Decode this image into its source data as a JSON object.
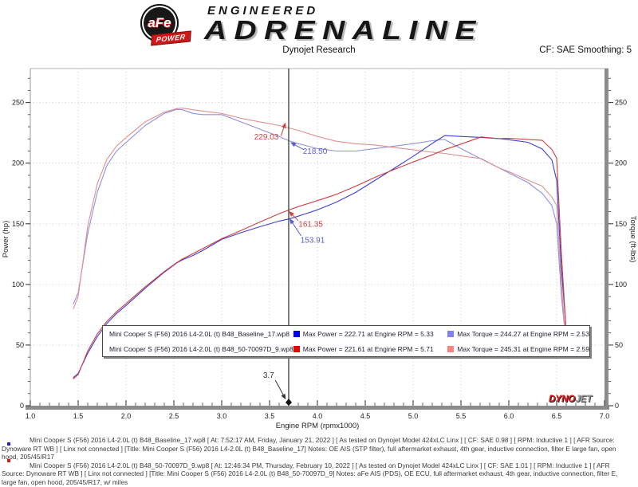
{
  "header": {
    "logo": {
      "afe": "aFe",
      "power": "POWER",
      "engineered": "ENGINEERED",
      "adrenaline": "ADRENALINE"
    },
    "title": "Dynojet Research",
    "smoothing": "CF: SAE Smoothing: 5"
  },
  "chart_data": {
    "type": "line",
    "title": "Dynojet Research",
    "xlabel": "Engine RPM (rpmx1000)",
    "ylabel_left": "Power (hp)",
    "ylabel_right": "Torque (ft-lbs)",
    "xlim": [
      1.0,
      7.0
    ],
    "ylim": [
      0,
      278
    ],
    "x_ticks": [
      1.0,
      1.5,
      2.0,
      2.5,
      3.0,
      3.5,
      4.0,
      4.5,
      5.0,
      5.5,
      6.0,
      6.5,
      7.0
    ],
    "y_ticks": [
      0,
      50,
      100,
      150,
      200,
      250
    ],
    "x_minor_step": 0.1,
    "y_minor_step": 10,
    "grid": "dotted",
    "legend_position": "lower center",
    "cursor": {
      "x": 3.7,
      "label": "3.7"
    },
    "x": [
      1.45,
      1.5,
      1.6,
      1.7,
      1.8,
      1.9,
      2.0,
      2.2,
      2.4,
      2.53,
      2.59,
      2.7,
      2.8,
      3.0,
      3.2,
      3.4,
      3.6,
      3.7,
      3.8,
      4.0,
      4.2,
      4.4,
      4.6,
      4.8,
      5.0,
      5.2,
      5.33,
      5.5,
      5.71,
      5.9,
      6.0,
      6.2,
      6.35,
      6.45,
      6.5,
      6.55,
      6.6
    ],
    "series": [
      {
        "name": "B48_Baseline_17 Torque (ft-lbs)",
        "color": "#9090e0",
        "values": [
          84,
          93,
          142,
          176,
          198,
          210,
          217,
          231,
          241,
          244.27,
          244,
          241,
          240,
          240,
          234,
          228,
          222,
          218.5,
          216,
          212,
          210,
          210,
          212,
          214,
          216,
          218.5,
          219.5,
          212,
          203.5,
          196,
          192,
          184,
          175,
          165,
          150,
          90,
          50
        ]
      },
      {
        "name": "B48_50-70097D_9 Torque (ft-lbs)",
        "color": "#e09090",
        "values": [
          80,
          90,
          148,
          183,
          203,
          214,
          221,
          234,
          242,
          245,
          245.31,
          244,
          243,
          241,
          237,
          234,
          231,
          229.03,
          227,
          222,
          218,
          216,
          215,
          213,
          211,
          209,
          208,
          206,
          203.79,
          196,
          193,
          186,
          181,
          172,
          165,
          100,
          48
        ]
      },
      {
        "name": "B48_Baseline_17 Power (hp)",
        "color": "#4040cc",
        "values": [
          23.2,
          26.6,
          43.3,
          57.0,
          67.9,
          76.0,
          82.6,
          96.8,
          110.1,
          117.7,
          120.3,
          123.9,
          127.9,
          137.1,
          142.6,
          147.6,
          152.2,
          153.91,
          156.3,
          161.5,
          167.9,
          175.9,
          185.7,
          195.6,
          205.6,
          216.3,
          222.71,
          222.0,
          221.2,
          220.2,
          219.3,
          217.2,
          211.6,
          202.6,
          185.7,
          112.2,
          62.8
        ]
      },
      {
        "name": "B48_50-70097D_9 Power (hp)",
        "color": "#cc4040",
        "values": [
          22.1,
          25.7,
          45.1,
          59.2,
          69.6,
          77.4,
          84.2,
          98.0,
          110.6,
          118.0,
          121.0,
          125.4,
          129.5,
          137.7,
          144.4,
          151.5,
          158.3,
          161.35,
          164.2,
          169.1,
          174.3,
          181.0,
          188.3,
          194.7,
          200.9,
          206.9,
          211.1,
          215.7,
          221.61,
          220.2,
          220.5,
          219.6,
          218.8,
          211.2,
          204.2,
          124.8,
          60.3
        ]
      }
    ],
    "annotations": [
      {
        "text": "229.03",
        "color": "#cc4444",
        "tx": 3.467,
        "ty": 221.5,
        "tail": [
          3.62,
          222.5
        ],
        "head": [
          3.667,
          233.6
        ]
      },
      {
        "text": "218.50",
        "color": "#5c5ccc",
        "tx": 3.975,
        "ty": 209.7,
        "tail": [
          3.86,
          211.0
        ],
        "head": [
          3.717,
          217.2
        ]
      },
      {
        "text": "161.35",
        "color": "#cc4444",
        "tx": 3.93,
        "ty": 149.5,
        "tail": [
          3.8,
          152.5
        ],
        "head": [
          3.7,
          160.5
        ]
      },
      {
        "text": "153.91",
        "color": "#5c5ccc",
        "tx": 3.95,
        "ty": 136.5,
        "tail": [
          3.83,
          140.0
        ],
        "head": [
          3.708,
          154.5
        ]
      },
      {
        "text": "3.7",
        "color": "#333333",
        "tx": 3.49,
        "ty": 25.0,
        "tail": [
          3.56,
          21.0
        ],
        "head": [
          3.67,
          5.0
        ]
      }
    ]
  },
  "legend": {
    "rows": [
      {
        "file": "Mini Cooper S (F56) 2016 L4-2.0L (t) B48_Baseline_17.wp8",
        "power_color": "#0000ee",
        "power_text": "Max Power = 222.71 at Engine RPM = 5.33",
        "torque_color": "#8080ff",
        "torque_text": "Max Torque = 244.27 at Engine RPM = 2.53"
      },
      {
        "file": "Mini Cooper S (F56) 2016 L4-2.0L (t) B48_50-70097D_9.wp8",
        "power_color": "#ee0000",
        "power_text": "Max Power = 221.61 at Engine RPM = 5.71",
        "torque_color": "#ff8080",
        "torque_text": "Max Torque = 245.31 at Engine RPM = 2.59"
      }
    ]
  },
  "watermark": {
    "dyno": "DYNO",
    "jet": "JET"
  },
  "footer": {
    "runs": [
      {
        "marker_color": "#2020cc",
        "text": "Mini Cooper S (F56) 2016 L4-2.0L (t) B48_Baseline_17.wp8 [ At: 7:52:17 AM, Friday, January 21, 2022 ] [ As tested on Dynojet Model 424xLC Linx ] [ CF: SAE 0.98 ] [ RPM: Inductive 1 ] [ AFR Source: Dynoware RT WB ] [ Linx not connected ] [Title: Mini Cooper S (F56) 2016 L4-2.0L (t) B48_Baseline_17]  Notes: OE AIS (STP filter), full aftermarket exhaust, 4th gear, inductive connection, filter E large fan, open hood, 205/45/R17"
      },
      {
        "marker_color": "#cc2020",
        "text": "Mini Cooper S (F56) 2016 L4-2.0L (t) B48_50-70097D_9.wp8 [ At: 12:46:34 PM, Thursday, February 10, 2022 ] [ As tested on Dynojet Model 424xLC Linx ] [ CF: SAE 1.01 ] [ RPM: Inductive 1 ] [ AFR Source: Dynoware RT WB ] [ Linx not connected ] [Title: Mini Cooper S (F56) 2016 L4-2.0L (t) B48_50-70097D_9]  Notes: aFe AIS (PDS), OE ECU, full aftermarket exhaust, 4th gear, inductive connection, filter E, large fan, open hood, 205/45/R17, w/ miles"
      }
    ]
  }
}
